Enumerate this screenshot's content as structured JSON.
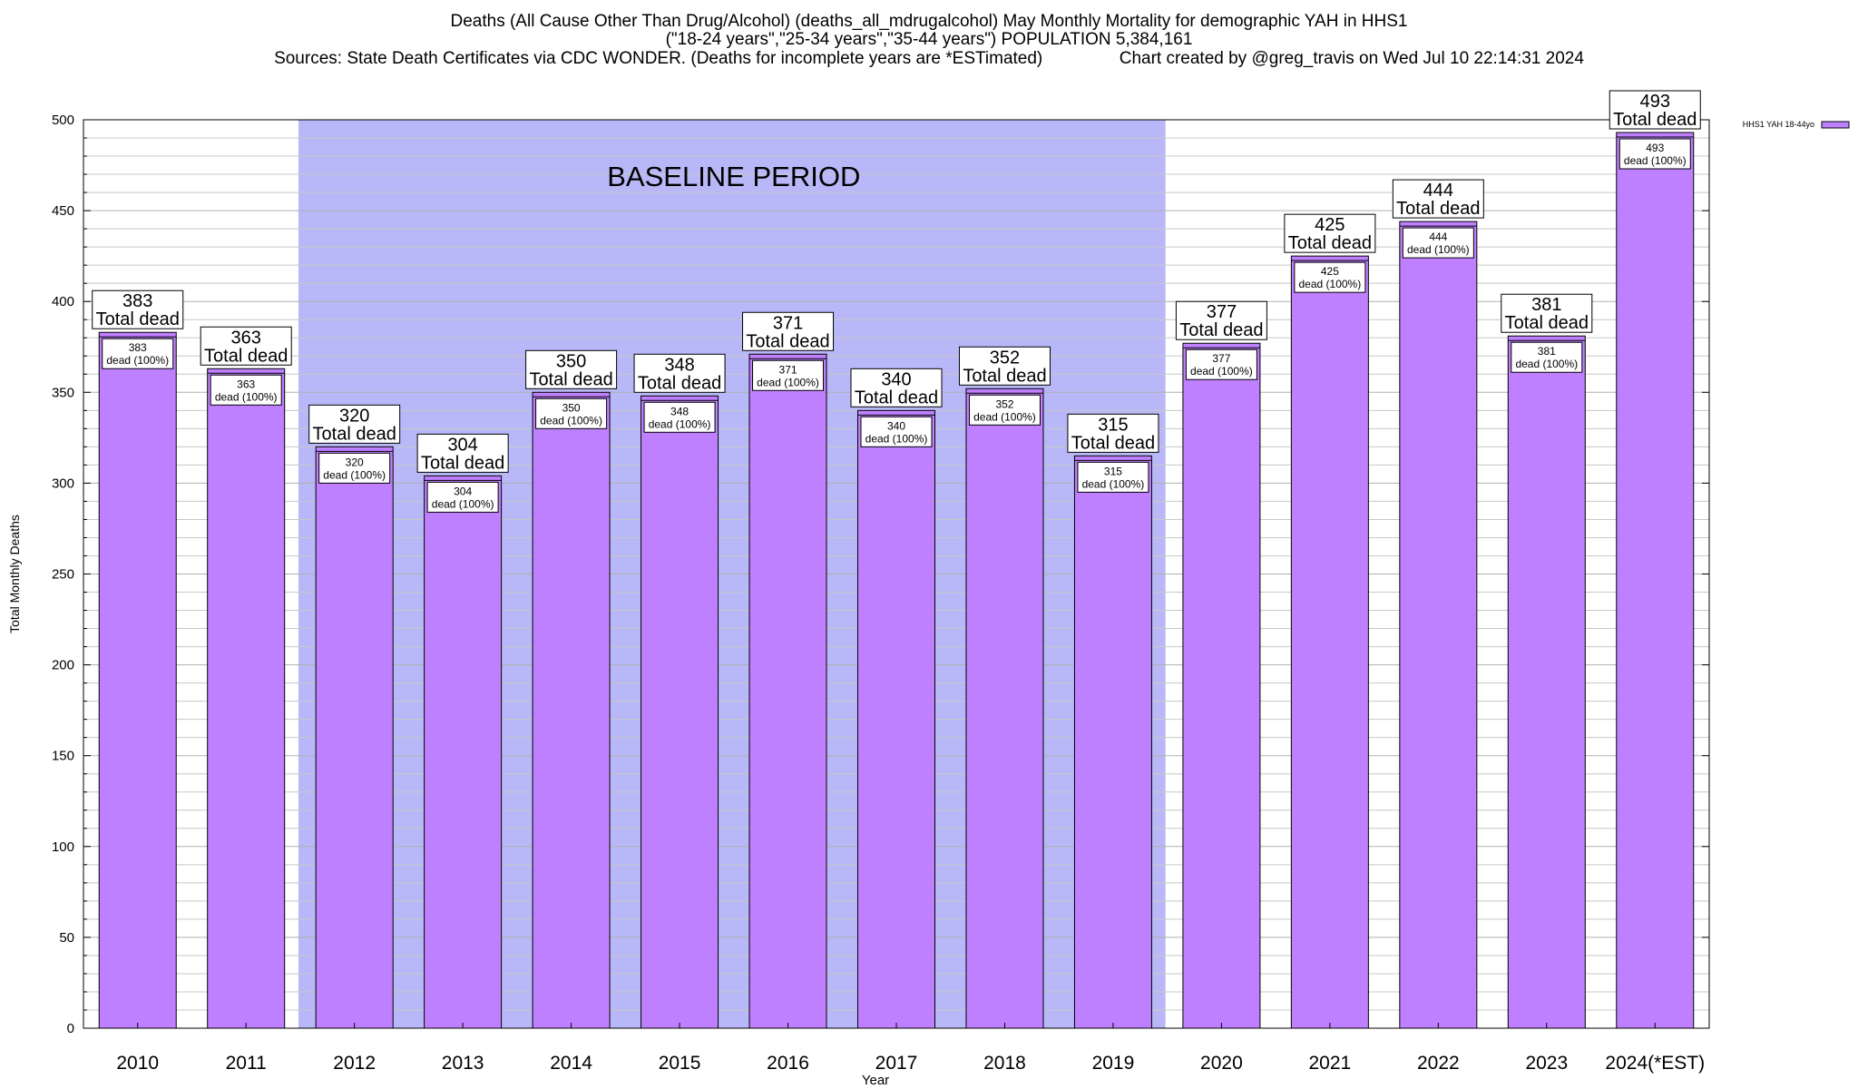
{
  "titles": {
    "line1": "Deaths (All Cause Other Than Drug/Alcohol) (deaths_all_mdrugalcohol) May Monthly Mortality for demographic YAH in HHS1",
    "line2": "(\"18-24 years\",\"25-34 years\",\"35-44 years\") POPULATION 5,384,161",
    "line3": "Sources: State Death Certificates via CDC WONDER. (Deaths for incomplete years are *ESTimated)                Chart created by @greg_travis on Wed Jul 10 22:14:31 2024"
  },
  "chart_data": {
    "type": "bar",
    "title": "Deaths (All Cause Other Than Drug/Alcohol) (deaths_all_mdrugalcohol) May Monthly Mortality for demographic YAH in HHS1",
    "xlabel": "Year",
    "ylabel": "Total Monthly Deaths",
    "ylim": [
      0,
      500
    ],
    "yticks": [
      0,
      50,
      100,
      150,
      200,
      250,
      300,
      350,
      400,
      450,
      500
    ],
    "categories": [
      "2010",
      "2011",
      "2012",
      "2013",
      "2014",
      "2015",
      "2016",
      "2017",
      "2018",
      "2019",
      "2020",
      "2021",
      "2022",
      "2023",
      "2024(*EST)"
    ],
    "series": [
      {
        "name": "HHS1 YAH 18-44yo",
        "values": [
          383,
          363,
          320,
          304,
          350,
          348,
          371,
          340,
          352,
          315,
          377,
          425,
          444,
          381,
          493
        ]
      }
    ],
    "total_label_suffix": "Total dead",
    "inner_label_suffix": "dead (100%)",
    "annotation": "BASELINE PERIOD",
    "baseline_categories": [
      "2012",
      "2019"
    ],
    "legend_position": "top-right",
    "grid": true,
    "colors": {
      "bar": "#bf80ff",
      "baseline": "#b8b8f8"
    }
  }
}
